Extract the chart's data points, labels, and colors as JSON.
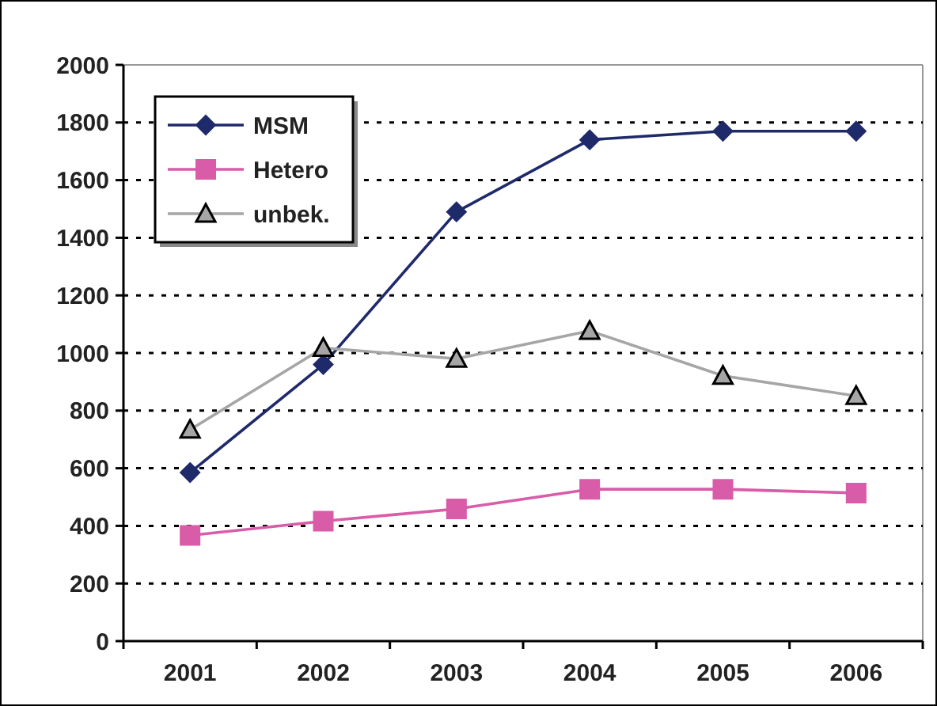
{
  "chart_data": {
    "type": "line",
    "categories": [
      "2001",
      "2002",
      "2003",
      "2004",
      "2005",
      "2006"
    ],
    "series": [
      {
        "name": "MSM",
        "color": "#1f2a6b",
        "marker": "diamond",
        "values": [
          585,
          960,
          1490,
          1740,
          1770,
          1770
        ]
      },
      {
        "name": "Hetero",
        "color": "#d95ca8",
        "marker": "square",
        "values": [
          367,
          416,
          459,
          527,
          527,
          514
        ]
      },
      {
        "name": "unbek.",
        "color": "#a6a6a6",
        "marker": "triangle",
        "values": [
          734,
          1018,
          980,
          1077,
          921,
          851
        ]
      }
    ],
    "ylim": [
      0,
      2000
    ],
    "yticks": [
      0,
      200,
      400,
      600,
      800,
      1000,
      1200,
      1400,
      1600,
      1800,
      2000
    ],
    "grid": "y",
    "legend": "top left"
  }
}
